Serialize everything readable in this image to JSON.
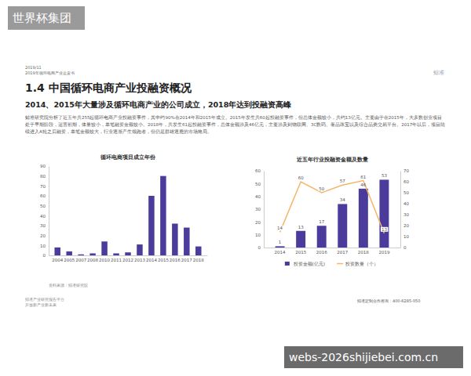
{
  "page": {
    "brand_overlay": "世界杯集团",
    "date": "2019/11",
    "report": "2019年循环电商产业蓝皮书",
    "logo": "鲸准",
    "title": "1.4 中国循环电商产业投融资概况",
    "subtitle": "2014、2015年大量涉及循环电商产业的公司成立，2018年达到投融资高峰",
    "paragraph": "鲸准研究院分析了近五年共255起循环电商产业投融资事件，其中约90%在2014年和2015年成立。2015年发生共60起投融资事件，但总体金额较小，共约13亿元。主要由于在2015年，大多数创业项目处于早期阶段，运营初期，体量较小，单笔融资金额较小。2018年，共发生61起投融资事件，总体金额涉及46亿元，主要涉及到物联网、3C数码、奢品珠宝以及综合品类交易平台。2017年以后，项目陆续进入A轮之后融资，单笔金额较大，行业逐渐产生领跑者，但仍是群雄逐鹿的市场格局。",
    "source": "资料来源：鲸准研究院",
    "footer_left": [
      "鲸准产业研究报告平台",
      "开放新产业新未来"
    ],
    "footer_right": "鲸准定制合作咨询：400-6285-050",
    "watermark": "webs-2026shijiebei.com.cn"
  },
  "chart_data": [
    {
      "type": "bar",
      "title": "循环电商项目成立年份",
      "categories": [
        "2004",
        "2005",
        "2007",
        "2008",
        "2010",
        "2011",
        "2012",
        "2013",
        "2014",
        "2015",
        "2016",
        "2017",
        "2018"
      ],
      "values": [
        8,
        4,
        1,
        2,
        14,
        2,
        3,
        11,
        60,
        80,
        32,
        28,
        9
      ],
      "color": "#4b3b9b",
      "ylim": [
        0,
        90
      ],
      "yticks": [
        0,
        10,
        20,
        30,
        40,
        50,
        60,
        70,
        80,
        90
      ]
    },
    {
      "type": "bar",
      "title": "近五年行业投融资金额及数量",
      "categories": [
        "2014",
        "2015",
        "2016",
        "2017",
        "2018",
        "2019"
      ],
      "series": [
        {
          "name": "投资金额(亿元)",
          "type": "bar",
          "color": "#4b3b9b",
          "values": [
            1,
            13,
            17,
            34,
            46,
            53
          ]
        },
        {
          "name": "投资数量（个）",
          "type": "line",
          "color": "#f5b56b",
          "axis": "y2",
          "values": [
            14,
            60,
            50,
            57,
            61,
            13
          ]
        }
      ],
      "ylim": [
        0,
        60
      ],
      "yticks": [
        0,
        10,
        20,
        30,
        40,
        50,
        60
      ],
      "y2lim": [
        0,
        70
      ],
      "y2ticks": [
        0,
        10,
        20,
        30,
        40,
        50,
        60,
        70
      ],
      "data_labels": true,
      "legend": "bottom"
    }
  ]
}
